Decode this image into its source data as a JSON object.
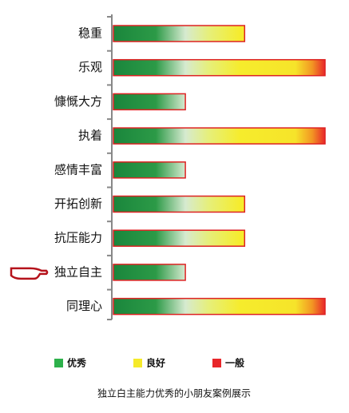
{
  "chart_data": {
    "type": "hbar",
    "categories": [
      "稳重",
      "乐观",
      "慷慨大方",
      "执着",
      "感情丰富",
      "开拓创新",
      "抗压能力",
      "独立自主",
      "同理心"
    ],
    "values": [
      62,
      100,
      34,
      100,
      34,
      62,
      62,
      34,
      100
    ],
    "highlight_index": 7,
    "legend": [
      {
        "name": "优秀",
        "color": "#2db14b"
      },
      {
        "name": "良好",
        "color": "#f5ea2a"
      },
      {
        "name": "一般",
        "color": "#e8262a"
      }
    ],
    "caption": "独立白主能力优秀的小朋友案例展示"
  }
}
